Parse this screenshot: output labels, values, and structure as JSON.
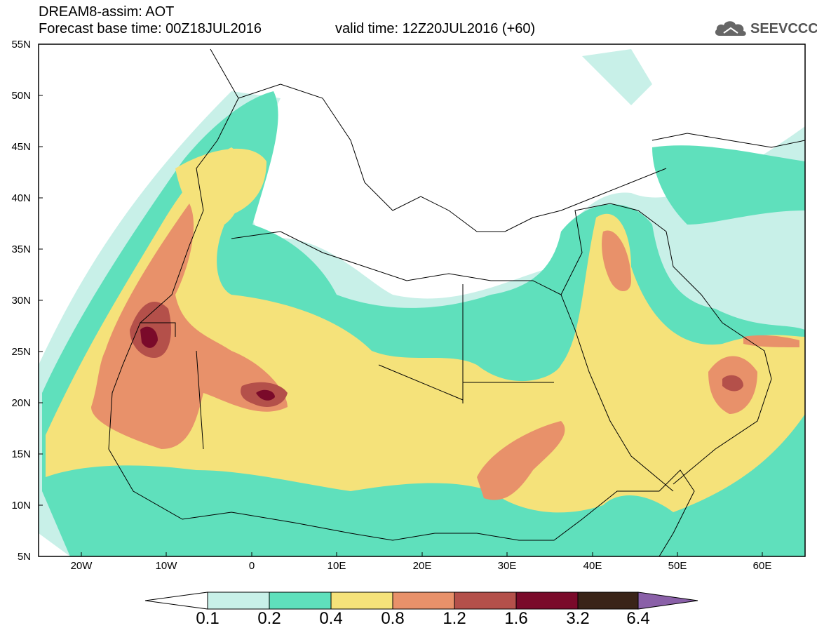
{
  "header": {
    "title_line1": "DREAM8-assim: AOT",
    "title_line2": "Forecast base time: 00Z18JUL2016",
    "valid_time": "valid time: 12Z20JUL2016 (+60)"
  },
  "logo": {
    "text": "SEEVCCC",
    "icon": "cloud-icon"
  },
  "axes": {
    "lat_labels": [
      "55N",
      "50N",
      "45N",
      "40N",
      "35N",
      "30N",
      "25N",
      "20N",
      "15N",
      "10N",
      "5N"
    ],
    "lon_labels": [
      "20W",
      "10W",
      "0",
      "10E",
      "20E",
      "30E",
      "40E",
      "50E",
      "60E"
    ]
  },
  "colorbar": {
    "labels": [
      "0.1",
      "0.2",
      "0.4",
      "0.8",
      "1.2",
      "1.6",
      "3.2",
      "6.4"
    ],
    "colors": [
      "#c8f0e8",
      "#5fe0bc",
      "#f5e27a",
      "#e8916a",
      "#b4504a",
      "#7a0a2a",
      "#3a2418",
      "#8a60a8"
    ]
  }
}
